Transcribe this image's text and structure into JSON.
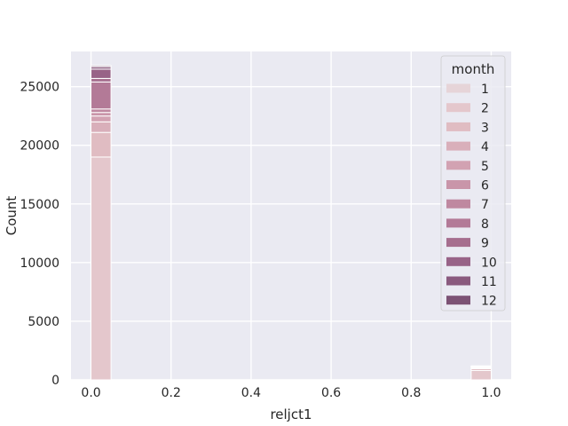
{
  "chart_data": {
    "type": "bar",
    "chart_kind": "stacked histogram",
    "xlabel": "reljct1",
    "ylabel": "Count",
    "xlim": [
      -0.05,
      1.05
    ],
    "ylim": [
      0,
      28000
    ],
    "xticks": [
      0.0,
      0.2,
      0.4,
      0.6,
      0.8,
      1.0
    ],
    "xtick_labels": [
      "0.0",
      "0.2",
      "0.4",
      "0.6",
      "0.8",
      "1.0"
    ],
    "yticks": [
      0,
      5000,
      10000,
      15000,
      20000,
      25000
    ],
    "ytick_labels": [
      "0",
      "5000",
      "10000",
      "15000",
      "20000",
      "25000"
    ],
    "grid": true,
    "legend": {
      "title": "month",
      "placement": "top-right"
    },
    "bins": [
      {
        "x_start": 0.0,
        "x_end": 0.05
      },
      {
        "x_start": 0.95,
        "x_end": 1.0
      }
    ],
    "series": [
      {
        "name": "1",
        "color": "#e6d4d8",
        "values": [
          0,
          0
        ]
      },
      {
        "name": "2",
        "color": "#e4c7cc",
        "values": [
          19000,
          800
        ]
      },
      {
        "name": "3",
        "color": "#e0bcc2",
        "values": [
          2100,
          150
        ]
      },
      {
        "name": "4",
        "color": "#d9afba",
        "values": [
          900,
          80
        ]
      },
      {
        "name": "5",
        "color": "#d2a2b2",
        "values": [
          500,
          40
        ]
      },
      {
        "name": "6",
        "color": "#c995a9",
        "values": [
          300,
          30
        ]
      },
      {
        "name": "7",
        "color": "#bf88a0",
        "values": [
          300,
          20
        ]
      },
      {
        "name": "8",
        "color": "#b37a97",
        "values": [
          2300,
          20
        ]
      },
      {
        "name": "9",
        "color": "#a66e8e",
        "values": [
          300,
          15
        ]
      },
      {
        "name": "10",
        "color": "#986387",
        "values": [
          800,
          15
        ]
      },
      {
        "name": "11",
        "color": "#8a5a7e",
        "values": [
          200,
          10
        ]
      },
      {
        "name": "12",
        "color": "#7c5274",
        "values": [
          100,
          10
        ]
      }
    ]
  }
}
